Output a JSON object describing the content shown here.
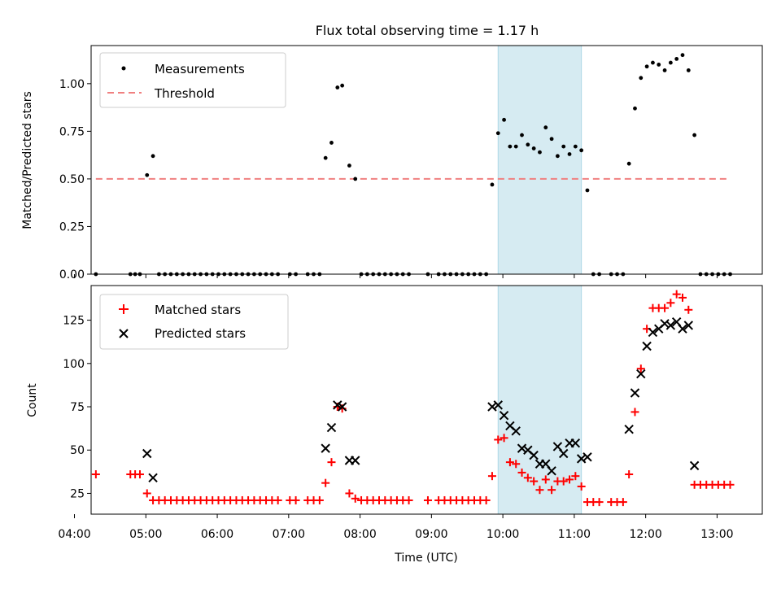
{
  "chart_data": [
    {
      "type": "scatter",
      "title": "Flux total observing time = 1.17 h",
      "xlabel": "",
      "ylabel": "Matched/Predicted stars",
      "xlim": [
        "04:14",
        "13:38"
      ],
      "ylim": [
        0,
        1.2
      ],
      "yticks": [
        "0.00",
        "0.25",
        "0.50",
        "0.75",
        "1.00"
      ],
      "grid": false,
      "legend_position": "upper-left",
      "highlight_span": {
        "start": "09:56",
        "end": "11:06",
        "color": "#add8e6"
      },
      "series": [
        {
          "name": "Measurements",
          "marker": "dot",
          "color": "#000000",
          "points": [
            [
              "04:18",
              0
            ],
            [
              "04:47",
              0
            ],
            [
              "04:51",
              0
            ],
            [
              "04:55",
              0
            ],
            [
              "05:01",
              0.52
            ],
            [
              "05:06",
              0.62
            ],
            [
              "05:11",
              0
            ],
            [
              "05:16",
              0
            ],
            [
              "05:21",
              0
            ],
            [
              "05:26",
              0
            ],
            [
              "05:31",
              0
            ],
            [
              "05:36",
              0
            ],
            [
              "05:41",
              0
            ],
            [
              "05:46",
              0
            ],
            [
              "05:51",
              0
            ],
            [
              "05:56",
              0
            ],
            [
              "06:01",
              0
            ],
            [
              "06:06",
              0
            ],
            [
              "06:11",
              0
            ],
            [
              "06:16",
              0
            ],
            [
              "06:21",
              0
            ],
            [
              "06:26",
              0
            ],
            [
              "06:31",
              0
            ],
            [
              "06:36",
              0
            ],
            [
              "06:41",
              0
            ],
            [
              "06:46",
              0
            ],
            [
              "06:51",
              0
            ],
            [
              "07:01",
              0
            ],
            [
              "07:06",
              0
            ],
            [
              "07:16",
              0
            ],
            [
              "07:21",
              0
            ],
            [
              "07:26",
              0
            ],
            [
              "07:31",
              0.61
            ],
            [
              "07:36",
              0.69
            ],
            [
              "07:41",
              0.98
            ],
            [
              "07:45",
              0.99
            ],
            [
              "07:51",
              0.57
            ],
            [
              "07:56",
              0.5
            ],
            [
              "08:01",
              0
            ],
            [
              "08:06",
              0
            ],
            [
              "08:11",
              0
            ],
            [
              "08:16",
              0
            ],
            [
              "08:21",
              0
            ],
            [
              "08:26",
              0
            ],
            [
              "08:31",
              0
            ],
            [
              "08:36",
              0
            ],
            [
              "08:41",
              0
            ],
            [
              "08:57",
              0
            ],
            [
              "09:06",
              0
            ],
            [
              "09:11",
              0
            ],
            [
              "09:16",
              0
            ],
            [
              "09:21",
              0
            ],
            [
              "09:26",
              0
            ],
            [
              "09:31",
              0
            ],
            [
              "09:36",
              0
            ],
            [
              "09:41",
              0
            ],
            [
              "09:46",
              0
            ],
            [
              "09:51",
              0.47
            ],
            [
              "09:56",
              0.74
            ],
            [
              "10:01",
              0.81
            ],
            [
              "10:06",
              0.67
            ],
            [
              "10:11",
              0.67
            ],
            [
              "10:16",
              0.73
            ],
            [
              "10:21",
              0.68
            ],
            [
              "10:26",
              0.66
            ],
            [
              "10:31",
              0.64
            ],
            [
              "10:36",
              0.77
            ],
            [
              "10:41",
              0.71
            ],
            [
              "10:46",
              0.62
            ],
            [
              "10:51",
              0.67
            ],
            [
              "10:56",
              0.63
            ],
            [
              "11:01",
              0.67
            ],
            [
              "11:06",
              0.65
            ],
            [
              "11:11",
              0.44
            ],
            [
              "11:16",
              0
            ],
            [
              "11:21",
              0
            ],
            [
              "11:31",
              0
            ],
            [
              "11:36",
              0
            ],
            [
              "11:41",
              0
            ],
            [
              "11:46",
              0.58
            ],
            [
              "11:51",
              0.87
            ],
            [
              "11:56",
              1.03
            ],
            [
              "12:01",
              1.09
            ],
            [
              "12:06",
              1.11
            ],
            [
              "12:11",
              1.1
            ],
            [
              "12:16",
              1.07
            ],
            [
              "12:21",
              1.11
            ],
            [
              "12:26",
              1.13
            ],
            [
              "12:31",
              1.15
            ],
            [
              "12:36",
              1.07
            ],
            [
              "12:41",
              0.73
            ],
            [
              "12:46",
              0
            ],
            [
              "12:51",
              0
            ],
            [
              "12:56",
              0
            ],
            [
              "13:01",
              0
            ],
            [
              "13:06",
              0
            ],
            [
              "13:11",
              0
            ]
          ]
        },
        {
          "name": "Threshold",
          "style": "dashed-line",
          "color": "#f08080",
          "points": [
            [
              "04:18",
              0.5
            ],
            [
              "13:11",
              0.5
            ]
          ]
        }
      ]
    },
    {
      "type": "scatter",
      "title": "",
      "xlabel": "Time (UTC)",
      "ylabel": "Count",
      "xlim": [
        "04:14",
        "13:38"
      ],
      "ylim": [
        13,
        145
      ],
      "yticks": [
        "25",
        "50",
        "75",
        "100",
        "125"
      ],
      "xticks": [
        "04:00",
        "05:00",
        "06:00",
        "07:00",
        "08:00",
        "09:00",
        "10:00",
        "11:00",
        "12:00",
        "13:00"
      ],
      "grid": false,
      "legend_position": "upper-left",
      "highlight_span": {
        "start": "09:56",
        "end": "11:06",
        "color": "#add8e6"
      },
      "series": [
        {
          "name": "Matched stars",
          "marker": "plus",
          "color": "#ff0000",
          "points": [
            [
              "04:18",
              36
            ],
            [
              "04:47",
              36
            ],
            [
              "04:51",
              36
            ],
            [
              "04:55",
              36
            ],
            [
              "05:01",
              25
            ],
            [
              "05:06",
              21
            ],
            [
              "05:11",
              21
            ],
            [
              "05:16",
              21
            ],
            [
              "05:21",
              21
            ],
            [
              "05:26",
              21
            ],
            [
              "05:31",
              21
            ],
            [
              "05:36",
              21
            ],
            [
              "05:41",
              21
            ],
            [
              "05:46",
              21
            ],
            [
              "05:51",
              21
            ],
            [
              "05:56",
              21
            ],
            [
              "06:01",
              21
            ],
            [
              "06:06",
              21
            ],
            [
              "06:11",
              21
            ],
            [
              "06:16",
              21
            ],
            [
              "06:21",
              21
            ],
            [
              "06:26",
              21
            ],
            [
              "06:31",
              21
            ],
            [
              "06:36",
              21
            ],
            [
              "06:41",
              21
            ],
            [
              "06:46",
              21
            ],
            [
              "06:51",
              21
            ],
            [
              "07:01",
              21
            ],
            [
              "07:06",
              21
            ],
            [
              "07:16",
              21
            ],
            [
              "07:21",
              21
            ],
            [
              "07:26",
              21
            ],
            [
              "07:31",
              31
            ],
            [
              "07:36",
              43
            ],
            [
              "07:41",
              75
            ],
            [
              "07:45",
              74
            ],
            [
              "07:51",
              25
            ],
            [
              "07:56",
              22
            ],
            [
              "08:01",
              21
            ],
            [
              "08:06",
              21
            ],
            [
              "08:11",
              21
            ],
            [
              "08:16",
              21
            ],
            [
              "08:21",
              21
            ],
            [
              "08:26",
              21
            ],
            [
              "08:31",
              21
            ],
            [
              "08:36",
              21
            ],
            [
              "08:41",
              21
            ],
            [
              "08:57",
              21
            ],
            [
              "09:06",
              21
            ],
            [
              "09:11",
              21
            ],
            [
              "09:16",
              21
            ],
            [
              "09:21",
              21
            ],
            [
              "09:26",
              21
            ],
            [
              "09:31",
              21
            ],
            [
              "09:36",
              21
            ],
            [
              "09:41",
              21
            ],
            [
              "09:46",
              21
            ],
            [
              "09:51",
              35
            ],
            [
              "09:56",
              56
            ],
            [
              "10:01",
              57
            ],
            [
              "10:06",
              43
            ],
            [
              "10:11",
              42
            ],
            [
              "10:16",
              37
            ],
            [
              "10:21",
              34
            ],
            [
              "10:26",
              32
            ],
            [
              "10:31",
              27
            ],
            [
              "10:36",
              33
            ],
            [
              "10:41",
              27
            ],
            [
              "10:46",
              32
            ],
            [
              "10:51",
              32
            ],
            [
              "10:56",
              33
            ],
            [
              "11:01",
              35
            ],
            [
              "11:06",
              29
            ],
            [
              "11:11",
              20
            ],
            [
              "11:16",
              20
            ],
            [
              "11:21",
              20
            ],
            [
              "11:31",
              20
            ],
            [
              "11:36",
              20
            ],
            [
              "11:41",
              20
            ],
            [
              "11:46",
              36
            ],
            [
              "11:51",
              72
            ],
            [
              "11:56",
              97
            ],
            [
              "12:01",
              120
            ],
            [
              "12:06",
              132
            ],
            [
              "12:11",
              132
            ],
            [
              "12:16",
              132
            ],
            [
              "12:21",
              135
            ],
            [
              "12:26",
              140
            ],
            [
              "12:31",
              138
            ],
            [
              "12:36",
              131
            ],
            [
              "12:41",
              30
            ],
            [
              "12:46",
              30
            ],
            [
              "12:51",
              30
            ],
            [
              "12:56",
              30
            ],
            [
              "13:01",
              30
            ],
            [
              "13:06",
              30
            ],
            [
              "13:11",
              30
            ]
          ]
        },
        {
          "name": "Predicted stars",
          "marker": "x",
          "color": "#000000",
          "points": [
            [
              "05:01",
              48
            ],
            [
              "05:06",
              34
            ],
            [
              "07:31",
              51
            ],
            [
              "07:36",
              63
            ],
            [
              "07:41",
              76
            ],
            [
              "07:45",
              75
            ],
            [
              "07:51",
              44
            ],
            [
              "07:56",
              44
            ],
            [
              "09:51",
              75
            ],
            [
              "09:56",
              76
            ],
            [
              "10:01",
              70
            ],
            [
              "10:06",
              64
            ],
            [
              "10:11",
              61
            ],
            [
              "10:16",
              51
            ],
            [
              "10:21",
              50
            ],
            [
              "10:26",
              47
            ],
            [
              "10:31",
              42
            ],
            [
              "10:36",
              42
            ],
            [
              "10:41",
              38
            ],
            [
              "10:46",
              52
            ],
            [
              "10:51",
              48
            ],
            [
              "10:56",
              54
            ],
            [
              "11:01",
              54
            ],
            [
              "11:06",
              45
            ],
            [
              "11:11",
              46
            ],
            [
              "11:46",
              62
            ],
            [
              "11:51",
              83
            ],
            [
              "11:56",
              94
            ],
            [
              "12:01",
              110
            ],
            [
              "12:06",
              118
            ],
            [
              "12:11",
              120
            ],
            [
              "12:16",
              123
            ],
            [
              "12:21",
              122
            ],
            [
              "12:26",
              124
            ],
            [
              "12:31",
              120
            ],
            [
              "12:36",
              122
            ],
            [
              "12:41",
              41
            ]
          ]
        }
      ]
    }
  ]
}
